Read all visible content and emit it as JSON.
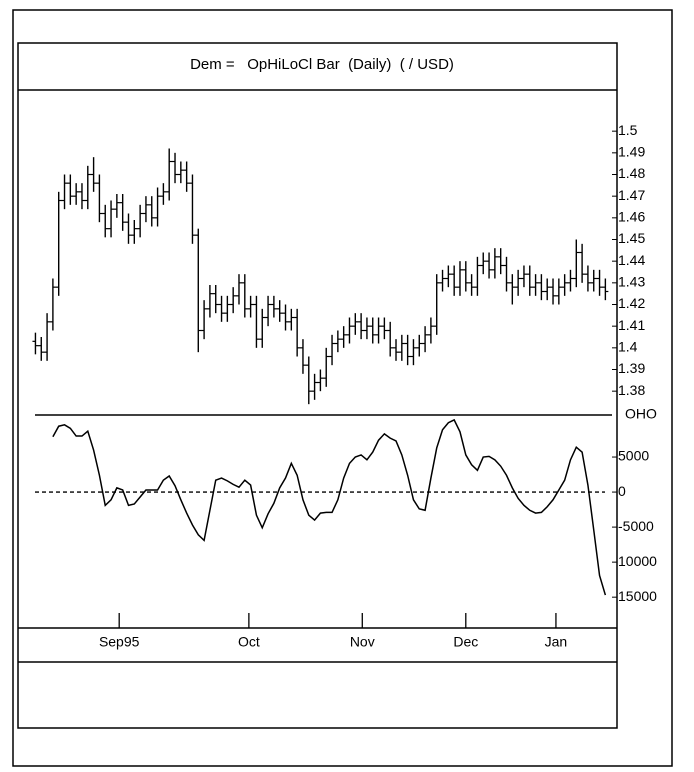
{
  "chart_data": [
    {
      "type": "ohlc",
      "title": "Dem =   OpHiLoCl Bar  (Daily)  ( / USD)",
      "xlim": [
        -3,
        100
      ],
      "ylim": [
        1.369,
        1.519
      ],
      "yticks": [
        1.5,
        1.49,
        1.48,
        1.47,
        1.46,
        1.45,
        1.44,
        1.43,
        1.42,
        1.41,
        1.4,
        1.39,
        1.38
      ],
      "color": "#000000",
      "ohlc": [
        [
          1.403,
          1.407,
          1.397,
          1.401
        ],
        [
          1.401,
          1.405,
          1.394,
          1.398
        ],
        [
          1.398,
          1.416,
          1.394,
          1.412
        ],
        [
          1.412,
          1.432,
          1.408,
          1.428
        ],
        [
          1.428,
          1.472,
          1.424,
          1.468
        ],
        [
          1.468,
          1.48,
          1.464,
          1.476
        ],
        [
          1.476,
          1.48,
          1.466,
          1.47
        ],
        [
          1.47,
          1.476,
          1.466,
          1.472
        ],
        [
          1.472,
          1.476,
          1.464,
          1.468
        ],
        [
          1.468,
          1.484,
          1.464,
          1.48
        ],
        [
          1.48,
          1.488,
          1.472,
          1.476
        ],
        [
          1.476,
          1.48,
          1.458,
          1.462
        ],
        [
          1.462,
          1.466,
          1.451,
          1.455
        ],
        [
          1.455,
          1.468,
          1.451,
          1.464
        ],
        [
          1.464,
          1.471,
          1.46,
          1.467
        ],
        [
          1.467,
          1.471,
          1.454,
          1.458
        ],
        [
          1.458,
          1.462,
          1.448,
          1.452
        ],
        [
          1.452,
          1.459,
          1.448,
          1.455
        ],
        [
          1.455,
          1.466,
          1.451,
          1.462
        ],
        [
          1.462,
          1.47,
          1.458,
          1.466
        ],
        [
          1.466,
          1.47,
          1.456,
          1.46
        ],
        [
          1.46,
          1.474,
          1.456,
          1.47
        ],
        [
          1.47,
          1.476,
          1.466,
          1.472
        ],
        [
          1.472,
          1.492,
          1.468,
          1.486
        ],
        [
          1.486,
          1.49,
          1.476,
          1.48
        ],
        [
          1.48,
          1.486,
          1.476,
          1.482
        ],
        [
          1.482,
          1.486,
          1.472,
          1.476
        ],
        [
          1.476,
          1.48,
          1.448,
          1.452
        ],
        [
          1.452,
          1.455,
          1.398,
          1.408
        ],
        [
          1.408,
          1.422,
          1.404,
          1.418
        ],
        [
          1.418,
          1.429,
          1.414,
          1.425
        ],
        [
          1.425,
          1.429,
          1.416,
          1.42
        ],
        [
          1.42,
          1.424,
          1.412,
          1.416
        ],
        [
          1.416,
          1.424,
          1.412,
          1.42
        ],
        [
          1.42,
          1.428,
          1.416,
          1.424
        ],
        [
          1.424,
          1.434,
          1.42,
          1.43
        ],
        [
          1.43,
          1.434,
          1.414,
          1.418
        ],
        [
          1.418,
          1.424,
          1.414,
          1.42
        ],
        [
          1.42,
          1.424,
          1.4,
          1.404
        ],
        [
          1.404,
          1.418,
          1.4,
          1.414
        ],
        [
          1.414,
          1.424,
          1.41,
          1.42
        ],
        [
          1.42,
          1.424,
          1.414,
          1.418
        ],
        [
          1.418,
          1.422,
          1.412,
          1.416
        ],
        [
          1.416,
          1.42,
          1.408,
          1.412
        ],
        [
          1.412,
          1.418,
          1.408,
          1.414
        ],
        [
          1.414,
          1.418,
          1.396,
          1.4
        ],
        [
          1.4,
          1.404,
          1.388,
          1.392
        ],
        [
          1.392,
          1.396,
          1.374,
          1.38
        ],
        [
          1.38,
          1.388,
          1.376,
          1.384
        ],
        [
          1.384,
          1.39,
          1.38,
          1.386
        ],
        [
          1.386,
          1.4,
          1.382,
          1.396
        ],
        [
          1.396,
          1.406,
          1.392,
          1.402
        ],
        [
          1.402,
          1.408,
          1.398,
          1.404
        ],
        [
          1.404,
          1.41,
          1.4,
          1.406
        ],
        [
          1.406,
          1.414,
          1.402,
          1.41
        ],
        [
          1.41,
          1.416,
          1.406,
          1.412
        ],
        [
          1.412,
          1.416,
          1.404,
          1.408
        ],
        [
          1.408,
          1.414,
          1.404,
          1.41
        ],
        [
          1.41,
          1.414,
          1.402,
          1.406
        ],
        [
          1.406,
          1.414,
          1.402,
          1.41
        ],
        [
          1.41,
          1.414,
          1.404,
          1.408
        ],
        [
          1.408,
          1.412,
          1.396,
          1.4
        ],
        [
          1.4,
          1.404,
          1.394,
          1.398
        ],
        [
          1.398,
          1.406,
          1.394,
          1.402
        ],
        [
          1.402,
          1.406,
          1.392,
          1.396
        ],
        [
          1.396,
          1.404,
          1.392,
          1.4
        ],
        [
          1.4,
          1.406,
          1.396,
          1.402
        ],
        [
          1.402,
          1.41,
          1.398,
          1.406
        ],
        [
          1.406,
          1.414,
          1.402,
          1.41
        ],
        [
          1.41,
          1.434,
          1.406,
          1.43
        ],
        [
          1.43,
          1.436,
          1.426,
          1.432
        ],
        [
          1.432,
          1.438,
          1.428,
          1.434
        ],
        [
          1.434,
          1.438,
          1.424,
          1.428
        ],
        [
          1.428,
          1.44,
          1.424,
          1.436
        ],
        [
          1.436,
          1.44,
          1.426,
          1.43
        ],
        [
          1.43,
          1.434,
          1.424,
          1.428
        ],
        [
          1.428,
          1.442,
          1.424,
          1.438
        ],
        [
          1.438,
          1.444,
          1.434,
          1.44
        ],
        [
          1.44,
          1.444,
          1.432,
          1.436
        ],
        [
          1.436,
          1.446,
          1.432,
          1.442
        ],
        [
          1.442,
          1.446,
          1.434,
          1.438
        ],
        [
          1.438,
          1.442,
          1.426,
          1.43
        ],
        [
          1.43,
          1.434,
          1.42,
          1.428
        ],
        [
          1.428,
          1.436,
          1.424,
          1.432
        ],
        [
          1.432,
          1.438,
          1.428,
          1.434
        ],
        [
          1.434,
          1.438,
          1.424,
          1.428
        ],
        [
          1.428,
          1.434,
          1.424,
          1.43
        ],
        [
          1.43,
          1.434,
          1.422,
          1.426
        ],
        [
          1.426,
          1.432,
          1.422,
          1.428
        ],
        [
          1.428,
          1.432,
          1.42,
          1.424
        ],
        [
          1.424,
          1.432,
          1.42,
          1.428
        ],
        [
          1.428,
          1.434,
          1.424,
          1.43
        ],
        [
          1.43,
          1.436,
          1.426,
          1.432
        ],
        [
          1.432,
          1.45,
          1.428,
          1.444
        ],
        [
          1.444,
          1.448,
          1.43,
          1.434
        ],
        [
          1.434,
          1.438,
          1.426,
          1.43
        ],
        [
          1.43,
          1.436,
          1.426,
          1.432
        ],
        [
          1.432,
          1.436,
          1.424,
          1.428
        ],
        [
          1.428,
          1.432,
          1.422,
          1.426
        ]
      ]
    },
    {
      "type": "line",
      "name": "OHO",
      "color": "#000000",
      "xlim": [
        -3,
        100
      ],
      "xticks": [
        {
          "value": 14.4,
          "label": "Sep95"
        },
        {
          "value": 36.7,
          "label": "Oct"
        },
        {
          "value": 56.2,
          "label": "Nov"
        },
        {
          "value": 74,
          "label": "Dec"
        },
        {
          "value": 89.5,
          "label": "Jan"
        }
      ],
      "ylim": [
        -19400,
        11000
      ],
      "yticks": [
        5000,
        0,
        -5000,
        {
          "value": -10000,
          "label": "10000"
        },
        {
          "value": -15000,
          "label": "15000"
        }
      ],
      "reference_line": 0,
      "values": [
        null,
        null,
        null,
        7900,
        9400,
        9600,
        9100,
        8000,
        8000,
        8700,
        6000,
        2400,
        -1900,
        -1100,
        600,
        300,
        -1900,
        -1700,
        -700,
        300,
        300,
        300,
        1700,
        2300,
        900,
        -1100,
        -3000,
        -4700,
        -6100,
        -6900,
        -2600,
        1700,
        2000,
        1600,
        1100,
        700,
        1700,
        1000,
        -3300,
        -5100,
        -3100,
        -1600,
        600,
        2000,
        4100,
        2400,
        -1100,
        -3300,
        -4000,
        -3000,
        -2900,
        -2900,
        -1100,
        2000,
        4100,
        5000,
        5300,
        4600,
        5700,
        7400,
        8300,
        7700,
        7300,
        5300,
        2400,
        -1100,
        -2400,
        -2600,
        2000,
        6300,
        8900,
        9900,
        10300,
        8600,
        5300,
        3900,
        3100,
        5000,
        5100,
        4600,
        3700,
        2400,
        600,
        -900,
        -1900,
        -2600,
        -3000,
        -2900,
        -2100,
        -1100,
        300,
        1700,
        4600,
        6400,
        5700,
        1000,
        -5400,
        -11900,
        -14700
      ]
    }
  ]
}
